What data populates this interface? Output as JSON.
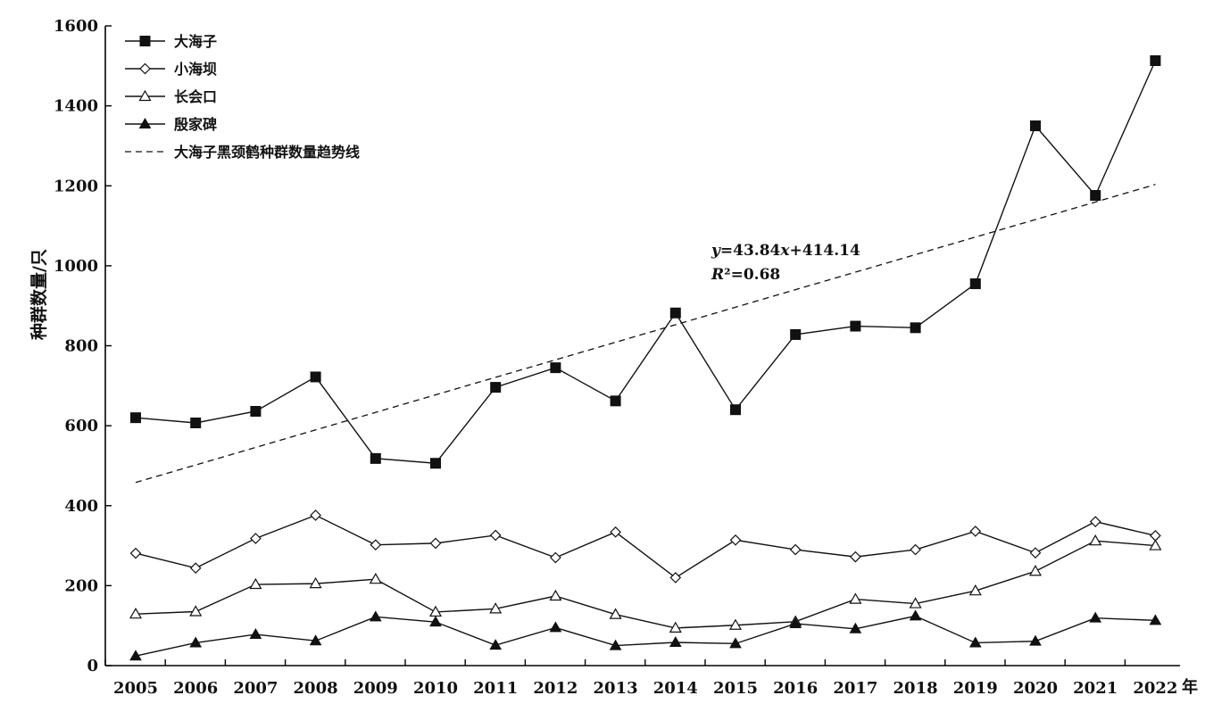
{
  "chart_data": {
    "type": "line",
    "title": "",
    "xlabel": "年",
    "ylabel": "种群数量/只",
    "ylim": [
      0,
      1600
    ],
    "yticks": [
      0,
      200,
      400,
      600,
      800,
      1000,
      1200,
      1400,
      1600
    ],
    "grid": false,
    "legend_position": "top-left",
    "categories": [
      "2005",
      "2006",
      "2007",
      "2008",
      "2009",
      "2010",
      "2011",
      "2012",
      "2013",
      "2014",
      "2015",
      "2016",
      "2017",
      "2018",
      "2019",
      "2020",
      "2021",
      "2022"
    ],
    "series": [
      {
        "name": "大海子",
        "marker": "square-filled",
        "values": [
          620,
          607,
          636,
          722,
          518,
          506,
          696,
          745,
          662,
          882,
          640,
          828,
          849,
          845,
          955,
          1350,
          1176,
          1513
        ]
      },
      {
        "name": "小海坝",
        "marker": "diamond-open",
        "values": [
          281,
          244,
          318,
          376,
          302,
          306,
          326,
          270,
          334,
          220,
          314,
          290,
          272,
          290,
          336,
          282,
          360,
          325
        ]
      },
      {
        "name": "长会口",
        "marker": "triangle-open",
        "values": [
          129,
          135,
          203,
          205,
          216,
          134,
          142,
          174,
          128,
          94,
          101,
          110,
          166,
          155,
          187,
          236,
          312,
          300
        ]
      },
      {
        "name": "殷家碑",
        "marker": "triangle-filled",
        "values": [
          24,
          57,
          78,
          62,
          122,
          109,
          51,
          95,
          50,
          58,
          55,
          105,
          92,
          124,
          57,
          61,
          119,
          113
        ]
      }
    ],
    "trendline": {
      "name": "大海子黑颈鹤种群数量趋势线",
      "equation": "y=43.84x+414.14",
      "r_squared": "R²=0.68",
      "slope": 43.84,
      "intercept": 414.14
    }
  }
}
